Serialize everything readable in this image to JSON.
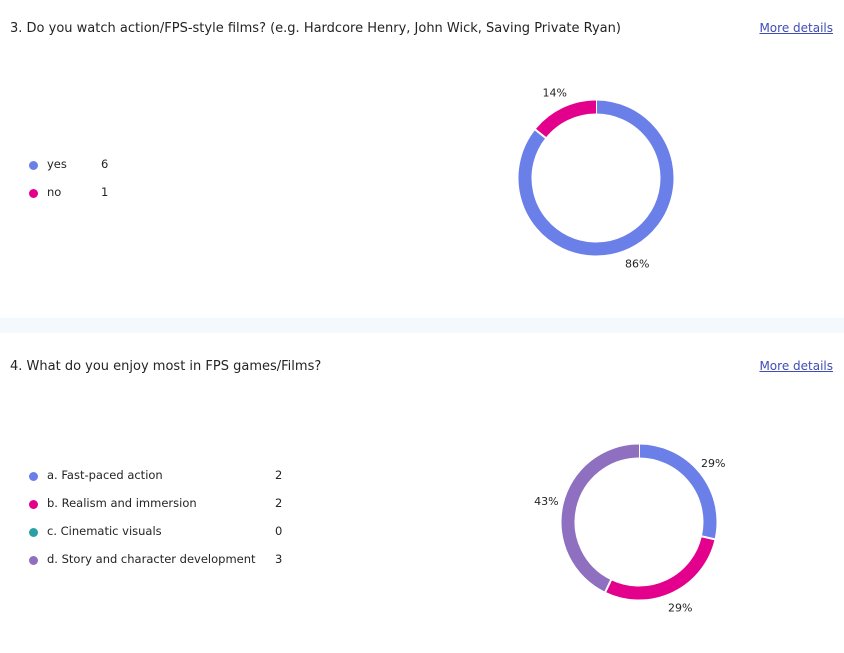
{
  "questions": [
    {
      "title": "3. Do you watch action/FPS-style films? (e.g. Hardcore Henry, John Wick, Saving Private Ryan)",
      "more_details": "More details",
      "options": [
        {
          "label": "yes",
          "count": "6",
          "color": "#6b7fe8"
        },
        {
          "label": "no",
          "count": "1",
          "color": "#e3008c"
        }
      ]
    },
    {
      "title": "4. What do you enjoy most in FPS games/Films?",
      "more_details": "More details",
      "options": [
        {
          "label": "a. Fast-paced action",
          "count": "2",
          "color": "#6b7fe8"
        },
        {
          "label": "b. Realism and immersion",
          "count": "2",
          "color": "#e3008c"
        },
        {
          "label": "c. Cinematic visuals",
          "count": "0",
          "color": "#2aa0a4"
        },
        {
          "label": "d. Story and character development",
          "count": "3",
          "color": "#8e6fc0"
        }
      ]
    }
  ],
  "chart_data": [
    {
      "type": "pie",
      "categories": [
        "yes",
        "no"
      ],
      "values": [
        6,
        1
      ],
      "data_labels": [
        "86%",
        "14%"
      ],
      "colors": [
        "#6b7fe8",
        "#e3008c"
      ]
    },
    {
      "type": "pie",
      "categories": [
        "a. Fast-paced action",
        "b. Realism and immersion",
        "c. Cinematic visuals",
        "d. Story and character development"
      ],
      "values": [
        2,
        2,
        0,
        3
      ],
      "data_labels": [
        "29%",
        "29%",
        "",
        "43%"
      ],
      "colors": [
        "#6b7fe8",
        "#e3008c",
        "#2aa0a4",
        "#8e6fc0"
      ]
    }
  ]
}
